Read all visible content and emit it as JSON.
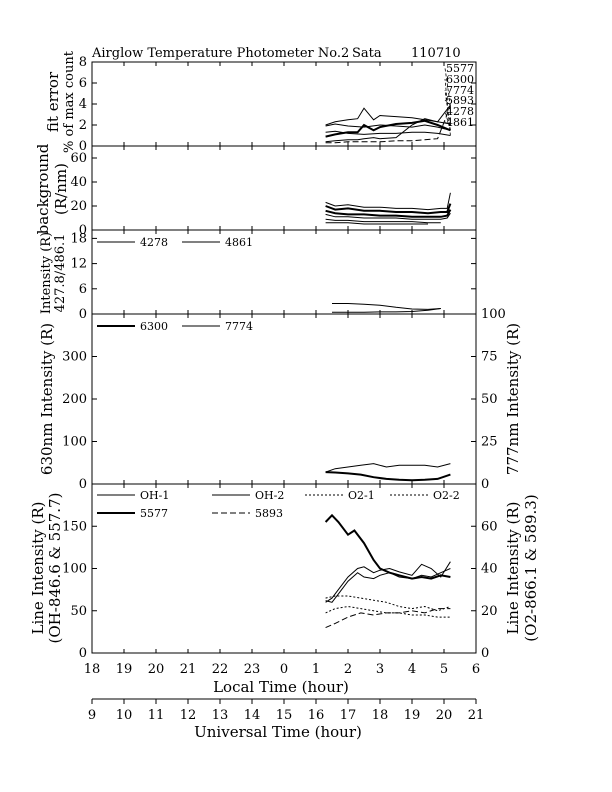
{
  "header": {
    "title": "Airglow Temperature Photometer No.2",
    "station": "Sata",
    "date": "110710"
  },
  "x_axis": {
    "local": {
      "label": "Local Time (hour)",
      "ticks": [
        "18",
        "19",
        "20",
        "21",
        "22",
        "23",
        "0",
        "1",
        "2",
        "3",
        "4",
        "5",
        "6"
      ]
    },
    "universal": {
      "label": "Universal Time (hour)",
      "ticks": [
        "9",
        "10",
        "11",
        "12",
        "13",
        "14",
        "15",
        "16",
        "17",
        "18",
        "19",
        "20",
        "21"
      ]
    }
  },
  "chart_data": [
    {
      "type": "line",
      "ylabel": [
        "fit error",
        "% of max count"
      ],
      "ylim": [
        0,
        8
      ],
      "yticks": [
        "0",
        "2",
        "4",
        "6",
        "8"
      ],
      "annotations": [
        "5577",
        "6300",
        "7774",
        "5893",
        "4278",
        "4861"
      ],
      "series": [
        {
          "name": "5577",
          "style": "dashed",
          "width": 1,
          "x": [
            25.3,
            25.6,
            26.0,
            26.5,
            27.0,
            27.5,
            28.0,
            28.4,
            28.8,
            29.2
          ],
          "y": [
            0.3,
            0.3,
            0.4,
            0.4,
            0.4,
            0.5,
            0.5,
            0.6,
            0.7,
            3.8
          ]
        },
        {
          "name": "6300",
          "style": "solid",
          "width": 1,
          "x": [
            25.3,
            25.6,
            26.0,
            26.5,
            27.0,
            27.5,
            28.0,
            28.4,
            28.8,
            29.2
          ],
          "y": [
            1.3,
            1.4,
            1.2,
            1.1,
            1.2,
            1.2,
            1.3,
            1.3,
            1.2,
            1.0
          ]
        },
        {
          "name": "7774",
          "style": "solid",
          "width": 1,
          "x": [
            25.3,
            25.6,
            26.0,
            26.5,
            27.0,
            27.5,
            28.0,
            28.4,
            28.8,
            29.2
          ],
          "y": [
            1.9,
            2.1,
            1.9,
            1.8,
            2.0,
            1.9,
            1.8,
            2.0,
            1.8,
            1.5
          ]
        },
        {
          "name": "5893",
          "style": "solid",
          "width": 1,
          "x": [
            25.3,
            25.6,
            26.0,
            26.3,
            26.5,
            26.8,
            27.0,
            27.5,
            28.0,
            28.4,
            28.8,
            29.2
          ],
          "y": [
            0.4,
            0.5,
            0.6,
            0.6,
            0.7,
            0.8,
            0.7,
            0.8,
            2.0,
            2.6,
            2.3,
            3.9
          ]
        },
        {
          "name": "4278",
          "style": "solid",
          "width": 2,
          "x": [
            25.3,
            25.6,
            26.0,
            26.3,
            26.5,
            26.8,
            27.0,
            27.5,
            28.0,
            28.4,
            28.8,
            29.2
          ],
          "y": [
            0.9,
            1.1,
            1.3,
            1.3,
            2.0,
            1.5,
            1.8,
            2.1,
            2.2,
            2.4,
            2.0,
            1.5
          ]
        },
        {
          "name": "4861",
          "style": "solid",
          "width": 1,
          "x": [
            25.3,
            25.6,
            26.0,
            26.3,
            26.5,
            26.8,
            27.0,
            27.5,
            28.0,
            28.4,
            28.8,
            29.2
          ],
          "y": [
            2.0,
            2.3,
            2.5,
            2.6,
            3.6,
            2.5,
            2.9,
            2.8,
            2.7,
            2.5,
            2.3,
            2.1
          ]
        }
      ]
    },
    {
      "type": "line",
      "ylabel": [
        "background",
        "(R/nm)"
      ],
      "ylim": [
        0,
        70
      ],
      "yticks": [
        "0",
        "20",
        "40",
        "60"
      ],
      "series": [
        {
          "name": "5577",
          "style": "solid",
          "width": 1,
          "x": [
            25.3,
            25.6,
            26.0,
            26.5,
            27.0,
            27.5,
            28.0,
            28.5,
            28.9,
            29.1,
            29.2
          ],
          "y": [
            23,
            20,
            21,
            19,
            19,
            18,
            18,
            17,
            18,
            18,
            31
          ]
        },
        {
          "name": "6300",
          "style": "solid",
          "width": 2,
          "x": [
            25.3,
            25.6,
            26.0,
            26.5,
            27.0,
            27.5,
            28.0,
            28.5,
            28.9,
            29.1,
            29.2
          ],
          "y": [
            20,
            17,
            18,
            16,
            16,
            15,
            15,
            14,
            15,
            15,
            22
          ]
        },
        {
          "name": "7774",
          "style": "solid",
          "width": 2,
          "x": [
            25.3,
            25.6,
            26.0,
            26.5,
            27.0,
            27.5,
            28.0,
            28.5,
            28.9,
            29.1,
            29.2
          ],
          "y": [
            16,
            14,
            13,
            13,
            12,
            12,
            11,
            11,
            11,
            12,
            17
          ]
        },
        {
          "name": "5893",
          "style": "solid",
          "width": 1,
          "x": [
            25.3,
            25.6,
            26.0,
            26.5,
            27.0,
            27.5,
            28.0,
            28.5,
            28.9,
            29.1,
            29.2
          ],
          "y": [
            13,
            11,
            11,
            10,
            10,
            10,
            9,
            9,
            9,
            10,
            14
          ]
        },
        {
          "name": "4278",
          "style": "solid",
          "width": 1,
          "x": [
            25.3,
            25.6,
            26.0,
            26.5,
            27.0,
            27.5,
            28.0,
            28.5,
            28.9
          ],
          "y": [
            9,
            8,
            8,
            7,
            7,
            7,
            7,
            6,
            6
          ]
        },
        {
          "name": "4861",
          "style": "solid",
          "width": 1,
          "x": [
            25.3,
            25.6,
            26.0,
            26.5,
            27.0,
            27.5,
            28.0,
            28.5
          ],
          "y": [
            6,
            6,
            6,
            5,
            5,
            5,
            5,
            5
          ]
        }
      ]
    },
    {
      "type": "line",
      "ylabel": [
        "Intensity (R)",
        "427.8/486.1"
      ],
      "ylim": [
        0,
        20
      ],
      "yticks": [
        "0",
        "6",
        "12",
        "18"
      ],
      "legend": [
        "4278",
        "4861"
      ],
      "series": [
        {
          "name": "4278",
          "style": "solid",
          "width": 1,
          "x": [
            25.5,
            26.0,
            26.5,
            27.0,
            27.5,
            28.0,
            28.5,
            28.9
          ],
          "y": [
            0.4,
            0.4,
            0.4,
            0.5,
            0.5,
            0.6,
            0.9,
            1.3
          ]
        },
        {
          "name": "4861",
          "style": "solid",
          "width": 1,
          "x": [
            25.5,
            26.0,
            26.5,
            27.0,
            27.5,
            28.0,
            28.5,
            28.9
          ],
          "y": [
            2.5,
            2.5,
            2.3,
            2.1,
            1.6,
            1.2,
            1.1,
            1.3
          ]
        }
      ]
    },
    {
      "type": "line",
      "ylabel": "630nm Intensity (R)",
      "ylabel_right": "777nm Intensity (R)",
      "ylim": [
        0,
        400
      ],
      "ylim_right": [
        0,
        100
      ],
      "yticks": [
        "0",
        "100",
        "200",
        "300"
      ],
      "yticks_right": [
        "0",
        "25",
        "50",
        "75",
        "100"
      ],
      "legend": [
        "6300",
        "7774"
      ],
      "series": [
        {
          "name": "6300",
          "style": "solid",
          "width": 2,
          "axis": "left",
          "x": [
            25.3,
            25.6,
            26.0,
            26.4,
            26.8,
            27.2,
            27.6,
            28.0,
            28.4,
            28.8,
            29.2
          ],
          "y": [
            28,
            27,
            25,
            22,
            16,
            12,
            10,
            9,
            10,
            12,
            22
          ]
        },
        {
          "name": "7774",
          "style": "solid",
          "width": 1,
          "axis": "right",
          "x": [
            25.3,
            25.6,
            26.0,
            26.4,
            26.8,
            27.2,
            27.6,
            28.0,
            28.4,
            28.8,
            29.2
          ],
          "y": [
            7,
            9,
            10,
            11,
            12,
            10,
            11,
            11,
            11,
            10,
            12
          ]
        }
      ]
    },
    {
      "type": "line",
      "ylabel": [
        "Line Intensity (R)",
        "(OH-846.6 & 557.7)"
      ],
      "ylabel_right": [
        "Line Intensity (R)",
        "(O2-866.1 & 589.3)"
      ],
      "ylim": [
        0,
        200
      ],
      "ylim_right": [
        0,
        80
      ],
      "yticks": [
        "0",
        "50",
        "100",
        "150"
      ],
      "yticks_right": [
        "0",
        "20",
        "40",
        "60"
      ],
      "legend": [
        "OH-1",
        "OH-2",
        "O2-1",
        "O2-2",
        "5577",
        "5893"
      ],
      "series": [
        {
          "name": "OH-1",
          "style": "solid",
          "width": 1,
          "axis": "left",
          "x": [
            25.3,
            25.5,
            25.7,
            26.0,
            26.3,
            26.5,
            26.8,
            27.0,
            27.3,
            27.6,
            28.0,
            28.3,
            28.6,
            28.9,
            29.2
          ],
          "y": [
            62,
            60,
            70,
            85,
            95,
            90,
            88,
            92,
            95,
            90,
            88,
            92,
            90,
            95,
            100
          ]
        },
        {
          "name": "OH-2",
          "style": "solid",
          "width": 1,
          "axis": "left",
          "x": [
            25.3,
            25.5,
            25.7,
            26.0,
            26.3,
            26.5,
            26.8,
            27.0,
            27.3,
            27.6,
            28.0,
            28.3,
            28.6,
            28.9,
            29.2
          ],
          "y": [
            60,
            65,
            75,
            90,
            100,
            102,
            95,
            98,
            100,
            96,
            92,
            105,
            100,
            90,
            108
          ]
        },
        {
          "name": "O2-1",
          "style": "dotted",
          "width": 1,
          "axis": "right",
          "x": [
            25.3,
            25.6,
            26.0,
            26.4,
            26.8,
            27.2,
            27.6,
            28.0,
            28.4,
            28.8,
            29.2
          ],
          "y": [
            26,
            27,
            27,
            26,
            25,
            24,
            22,
            21,
            22,
            20,
            22
          ]
        },
        {
          "name": "O2-2",
          "style": "dotted",
          "width": 1,
          "axis": "right",
          "x": [
            25.3,
            25.6,
            26.0,
            26.4,
            26.8,
            27.2,
            27.6,
            28.0,
            28.4,
            28.8,
            29.2
          ],
          "y": [
            19,
            21,
            22,
            21,
            20,
            19,
            19,
            18,
            18,
            17,
            17
          ]
        },
        {
          "name": "5577",
          "style": "solid",
          "width": 2,
          "axis": "left",
          "x": [
            25.3,
            25.5,
            25.7,
            26.0,
            26.2,
            26.5,
            26.8,
            27.0,
            27.3,
            27.6,
            28.0,
            28.3,
            28.6,
            28.9,
            29.2
          ],
          "y": [
            155,
            163,
            155,
            140,
            145,
            130,
            110,
            100,
            95,
            92,
            88,
            90,
            88,
            92,
            90
          ]
        },
        {
          "name": "5893",
          "style": "dashed",
          "width": 1,
          "axis": "right",
          "x": [
            25.3,
            25.6,
            26.0,
            26.4,
            26.8,
            27.2,
            27.6,
            28.0,
            28.4,
            28.8,
            29.2
          ],
          "y": [
            12,
            14,
            17,
            19,
            18,
            19,
            19,
            20,
            19,
            21,
            21
          ]
        }
      ]
    }
  ]
}
